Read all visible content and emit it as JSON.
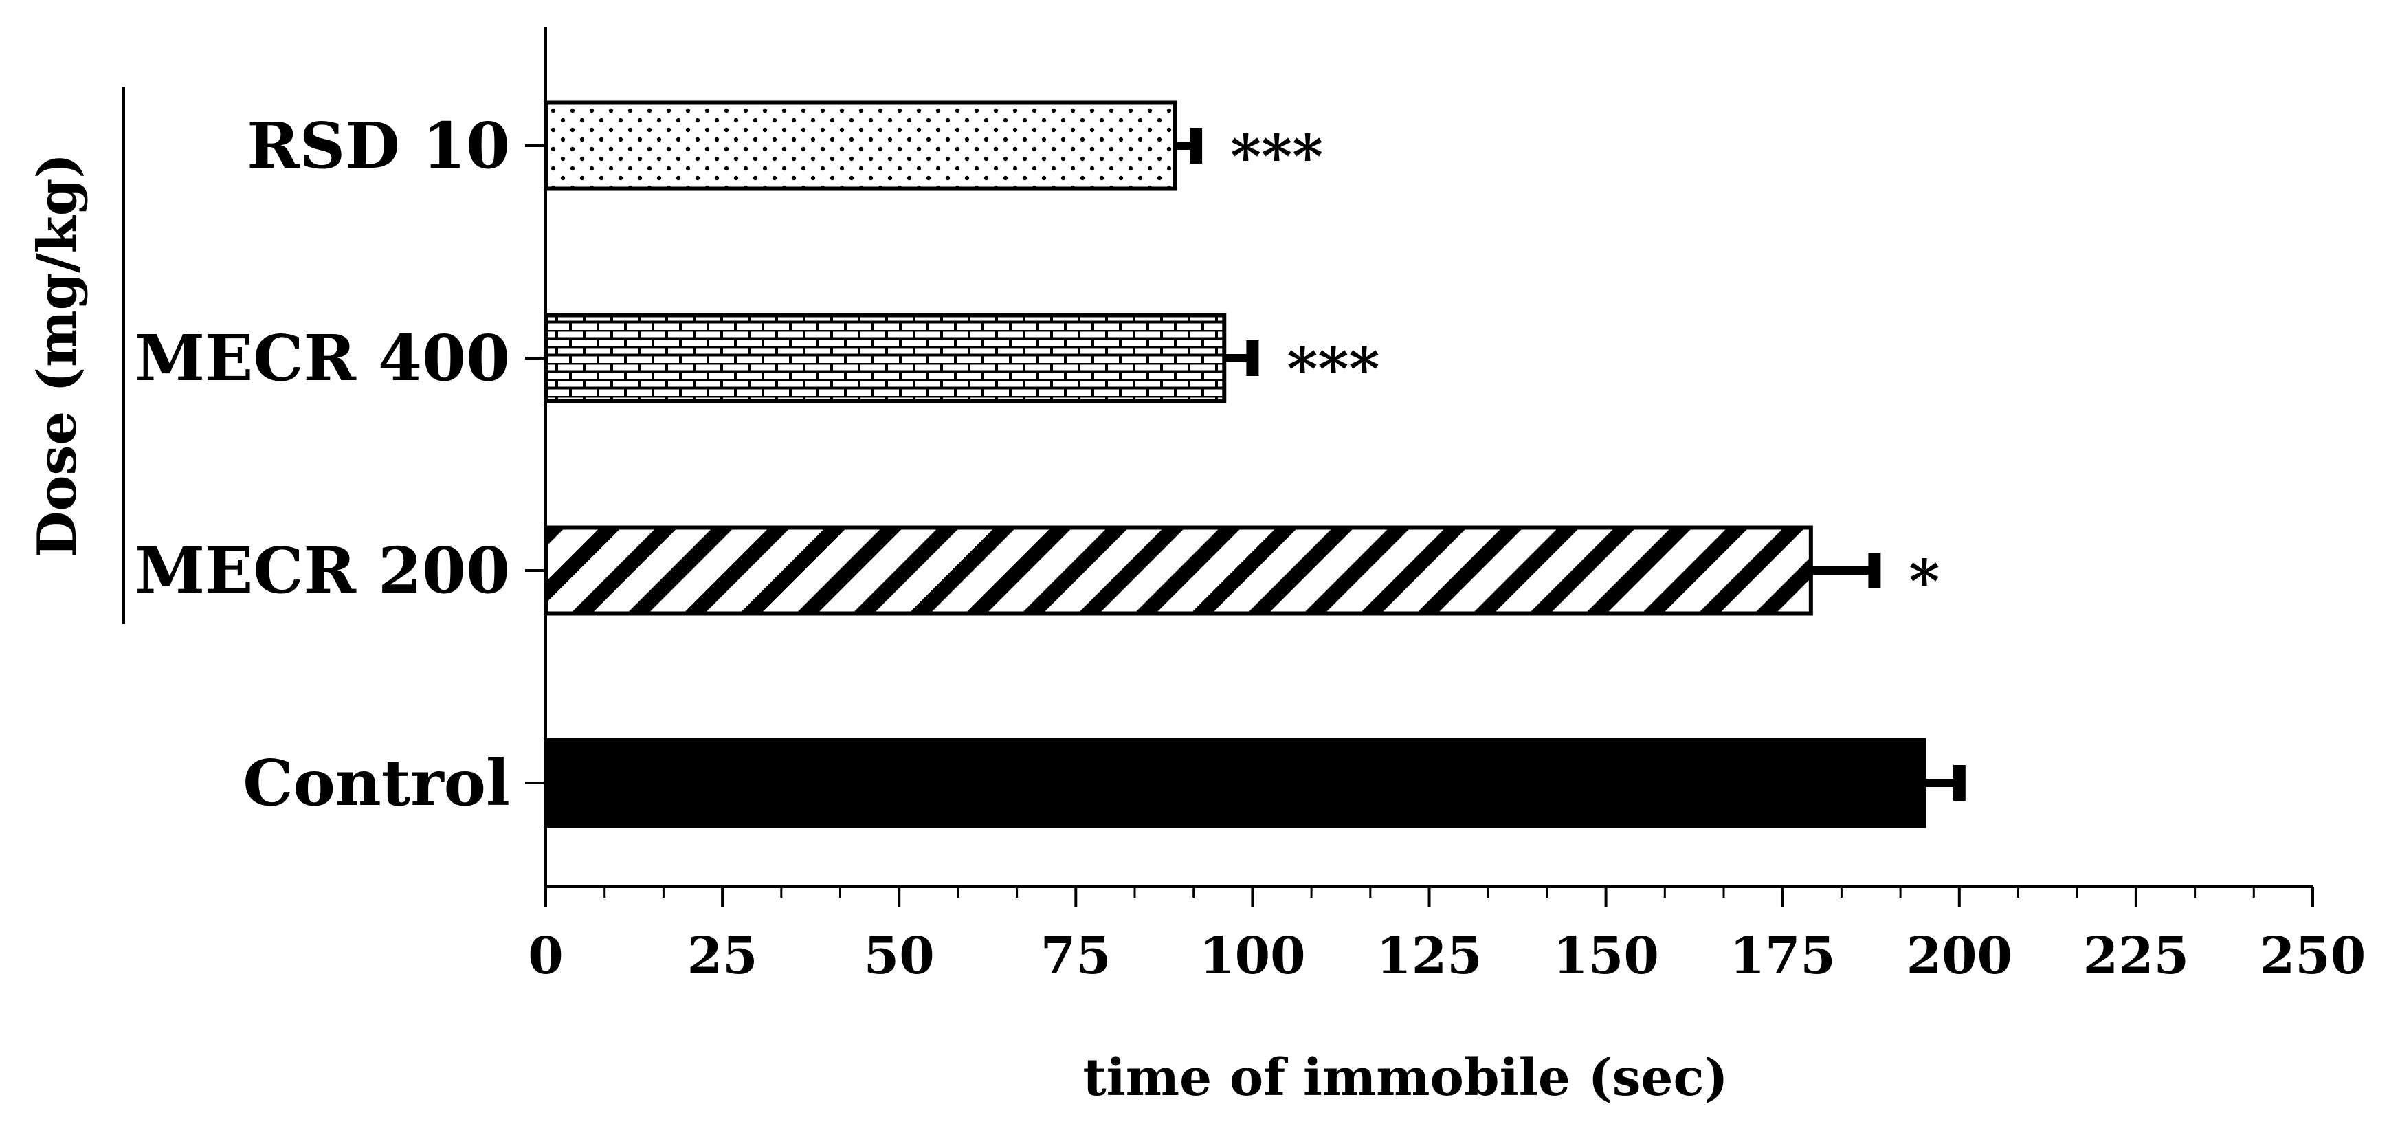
{
  "chart_data": {
    "type": "bar",
    "orientation": "horizontal",
    "categories": [
      "Control",
      "MECR 200",
      "MECR 400",
      "RSD 10"
    ],
    "values": [
      195,
      179,
      96,
      89
    ],
    "errors": [
      5,
      9,
      4,
      3
    ],
    "significance": [
      "",
      "*",
      "***",
      "***"
    ],
    "patterns": [
      "solid",
      "diagonal-stripes",
      "brick",
      "dots"
    ],
    "xlabel": "time of immobile (sec)",
    "group_label": "Dose (mg/kg)",
    "xlim": [
      0,
      250
    ],
    "xticks": [
      0,
      25,
      50,
      75,
      100,
      125,
      150,
      175,
      200,
      225,
      250
    ],
    "xtick_labels": [
      "0",
      "25",
      "50",
      "75",
      "100",
      "125",
      "150",
      "175",
      "200",
      "225",
      "250"
    ],
    "grid": false,
    "legend": "none",
    "colors": {
      "fill": "#000000",
      "background": "#ffffff"
    }
  }
}
